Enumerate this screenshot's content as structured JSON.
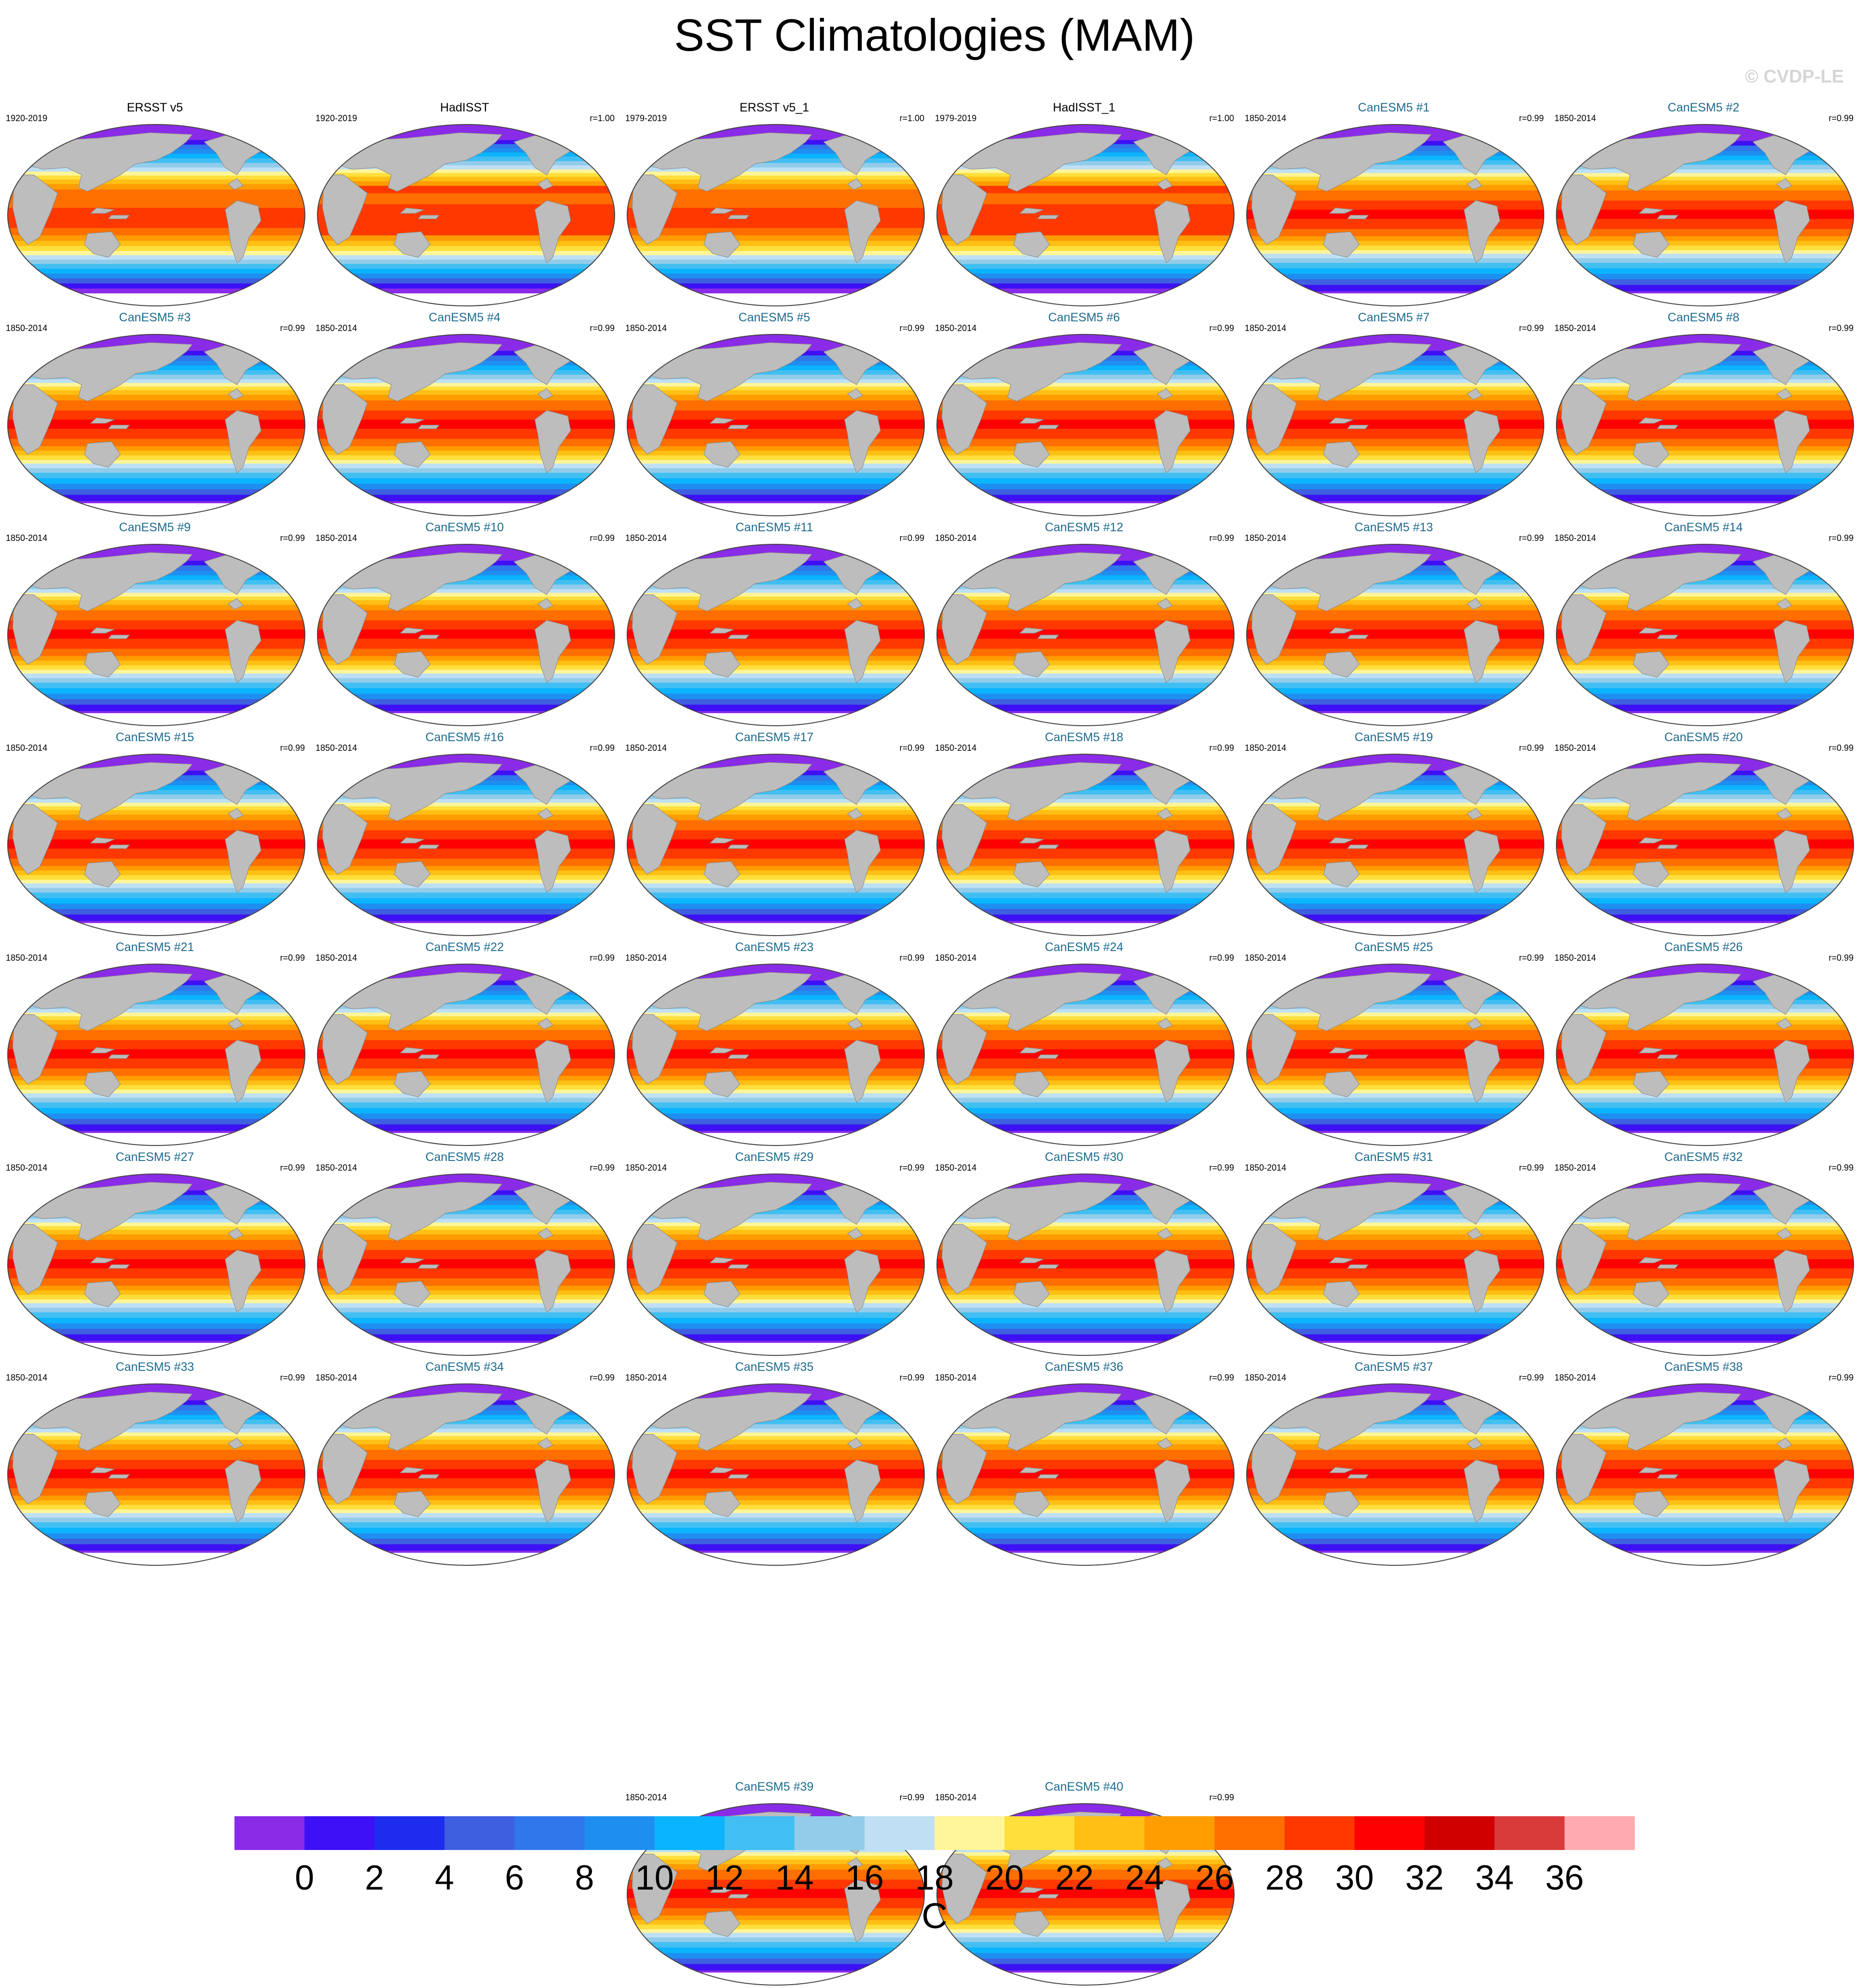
{
  "figure": {
    "title": "SST Climatologies (MAM)",
    "copyright": "© CVDP-LE"
  },
  "chart_data": {
    "type": "heatmap",
    "title": "SST Climatologies (MAM)",
    "colorbar": {
      "label": "C",
      "ticks": [
        0,
        2,
        4,
        6,
        8,
        10,
        12,
        14,
        16,
        18,
        20,
        22,
        24,
        26,
        28,
        30,
        32,
        34,
        36
      ],
      "tick_labels": [
        "0",
        "2",
        "4",
        "6",
        "8",
        "10",
        "12",
        "14",
        "16",
        "18",
        "20",
        "22",
        "24",
        "26",
        "28",
        "30",
        "32",
        "34",
        "36"
      ],
      "colors": [
        "#8a2be8",
        "#3d10f5",
        "#1e2cf0",
        "#3e5fdf",
        "#2f77ea",
        "#1e8ff0",
        "#0bb4ff",
        "#41bff2",
        "#92ccea",
        "#bfe0f4",
        "#fff599",
        "#ffdf3c",
        "#ffbf14",
        "#ff9c00",
        "#ff6f00",
        "#ff3800",
        "#ff0000",
        "#d00000",
        "#d83a3a",
        "#ffaab0"
      ]
    },
    "panels": [
      {
        "title": "ERSST v5",
        "period": "1920-2019",
        "r": "",
        "kind": "obs",
        "style": "ersst"
      },
      {
        "title": "HadISST",
        "period": "1920-2019",
        "r": "r=1.00",
        "kind": "obs",
        "style": "hadisst"
      },
      {
        "title": "ERSST v5_1",
        "period": "1979-2019",
        "r": "r=1.00",
        "kind": "obs",
        "style": "ersst"
      },
      {
        "title": "HadISST_1",
        "period": "1979-2019",
        "r": "r=1.00",
        "kind": "obs",
        "style": "hadisst"
      },
      {
        "title": "CanESM5 #1",
        "period": "1850-2014",
        "r": "r=0.99",
        "kind": "model",
        "style": "model"
      },
      {
        "title": "CanESM5 #2",
        "period": "1850-2014",
        "r": "r=0.99",
        "kind": "model",
        "style": "model"
      },
      {
        "title": "CanESM5 #3",
        "period": "1850-2014",
        "r": "r=0.99",
        "kind": "model",
        "style": "model"
      },
      {
        "title": "CanESM5 #4",
        "period": "1850-2014",
        "r": "r=0.99",
        "kind": "model",
        "style": "model"
      },
      {
        "title": "CanESM5 #5",
        "period": "1850-2014",
        "r": "r=0.99",
        "kind": "model",
        "style": "model"
      },
      {
        "title": "CanESM5 #6",
        "period": "1850-2014",
        "r": "r=0.99",
        "kind": "model",
        "style": "model"
      },
      {
        "title": "CanESM5 #7",
        "period": "1850-2014",
        "r": "r=0.99",
        "kind": "model",
        "style": "model"
      },
      {
        "title": "CanESM5 #8",
        "period": "1850-2014",
        "r": "r=0.99",
        "kind": "model",
        "style": "model"
      },
      {
        "title": "CanESM5 #9",
        "period": "1850-2014",
        "r": "r=0.99",
        "kind": "model",
        "style": "model"
      },
      {
        "title": "CanESM5 #10",
        "period": "1850-2014",
        "r": "r=0.99",
        "kind": "model",
        "style": "model"
      },
      {
        "title": "CanESM5 #11",
        "period": "1850-2014",
        "r": "r=0.99",
        "kind": "model",
        "style": "model"
      },
      {
        "title": "CanESM5 #12",
        "period": "1850-2014",
        "r": "r=0.99",
        "kind": "model",
        "style": "model"
      },
      {
        "title": "CanESM5 #13",
        "period": "1850-2014",
        "r": "r=0.99",
        "kind": "model",
        "style": "model"
      },
      {
        "title": "CanESM5 #14",
        "period": "1850-2014",
        "r": "r=0.99",
        "kind": "model",
        "style": "model"
      },
      {
        "title": "CanESM5 #15",
        "period": "1850-2014",
        "r": "r=0.99",
        "kind": "model",
        "style": "model"
      },
      {
        "title": "CanESM5 #16",
        "period": "1850-2014",
        "r": "r=0.99",
        "kind": "model",
        "style": "model"
      },
      {
        "title": "CanESM5 #17",
        "period": "1850-2014",
        "r": "r=0.99",
        "kind": "model",
        "style": "model"
      },
      {
        "title": "CanESM5 #18",
        "period": "1850-2014",
        "r": "r=0.99",
        "kind": "model",
        "style": "model"
      },
      {
        "title": "CanESM5 #19",
        "period": "1850-2014",
        "r": "r=0.99",
        "kind": "model",
        "style": "model"
      },
      {
        "title": "CanESM5 #20",
        "period": "1850-2014",
        "r": "r=0.99",
        "kind": "model",
        "style": "model"
      },
      {
        "title": "CanESM5 #21",
        "period": "1850-2014",
        "r": "r=0.99",
        "kind": "model",
        "style": "model"
      },
      {
        "title": "CanESM5 #22",
        "period": "1850-2014",
        "r": "r=0.99",
        "kind": "model",
        "style": "model"
      },
      {
        "title": "CanESM5 #23",
        "period": "1850-2014",
        "r": "r=0.99",
        "kind": "model",
        "style": "model"
      },
      {
        "title": "CanESM5 #24",
        "period": "1850-2014",
        "r": "r=0.99",
        "kind": "model",
        "style": "model"
      },
      {
        "title": "CanESM5 #25",
        "period": "1850-2014",
        "r": "r=0.99",
        "kind": "model",
        "style": "model"
      },
      {
        "title": "CanESM5 #26",
        "period": "1850-2014",
        "r": "r=0.99",
        "kind": "model",
        "style": "model"
      },
      {
        "title": "CanESM5 #27",
        "period": "1850-2014",
        "r": "r=0.99",
        "kind": "model",
        "style": "model"
      },
      {
        "title": "CanESM5 #28",
        "period": "1850-2014",
        "r": "r=0.99",
        "kind": "model",
        "style": "model"
      },
      {
        "title": "CanESM5 #29",
        "period": "1850-2014",
        "r": "r=0.99",
        "kind": "model",
        "style": "model"
      },
      {
        "title": "CanESM5 #30",
        "period": "1850-2014",
        "r": "r=0.99",
        "kind": "model",
        "style": "model"
      },
      {
        "title": "CanESM5 #31",
        "period": "1850-2014",
        "r": "r=0.99",
        "kind": "model",
        "style": "model"
      },
      {
        "title": "CanESM5 #32",
        "period": "1850-2014",
        "r": "r=0.99",
        "kind": "model",
        "style": "model"
      },
      {
        "title": "CanESM5 #33",
        "period": "1850-2014",
        "r": "r=0.99",
        "kind": "model",
        "style": "model"
      },
      {
        "title": "CanESM5 #34",
        "period": "1850-2014",
        "r": "r=0.99",
        "kind": "model",
        "style": "model"
      },
      {
        "title": "CanESM5 #35",
        "period": "1850-2014",
        "r": "r=0.99",
        "kind": "model",
        "style": "model"
      },
      {
        "title": "CanESM5 #36",
        "period": "1850-2014",
        "r": "r=0.99",
        "kind": "model",
        "style": "model"
      },
      {
        "title": "CanESM5 #37",
        "period": "1850-2014",
        "r": "r=0.99",
        "kind": "model",
        "style": "model"
      },
      {
        "title": "CanESM5 #38",
        "period": "1850-2014",
        "r": "r=0.99",
        "kind": "model",
        "style": "model"
      },
      {
        "title": "CanESM5 #39",
        "period": "1850-2014",
        "r": "r=0.99",
        "kind": "model",
        "style": "model"
      },
      {
        "title": "CanESM5 #40",
        "period": "1850-2014",
        "r": "r=0.99",
        "kind": "model",
        "style": "model"
      }
    ],
    "map_colors": {
      "land": "#bdbdbd",
      "outline": "#444444",
      "model_title": "#1d6a8e"
    }
  }
}
